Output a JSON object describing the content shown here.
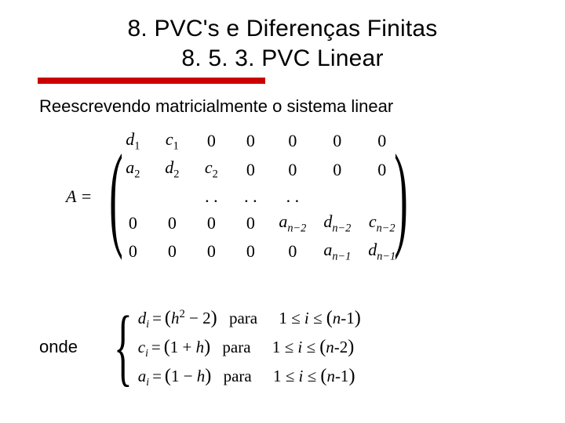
{
  "title_line1": "8. PVC's e Diferenças Finitas",
  "title_line2": "8. 5. 3. PVC  Linear",
  "body": "Reescrevendo matricialmente o sistema linear",
  "matrix": {
    "lhs": "A =",
    "rows": [
      [
        "d1",
        "c1",
        "0",
        "0",
        "0",
        "0",
        "0"
      ],
      [
        "a2",
        "d2",
        "c2",
        "0",
        "0",
        "0",
        "0"
      ],
      [
        "",
        "",
        "..",
        "..",
        "..",
        "",
        ""
      ],
      [
        "0",
        "0",
        "0",
        "0",
        "a_{n-2}",
        "d_{n-2}",
        "c_{n-2}"
      ],
      [
        "0",
        "0",
        "0",
        "0",
        "0",
        "a_{n-1}",
        "d_{n-1}"
      ]
    ]
  },
  "onde_label": "onde",
  "defs": {
    "d": {
      "lhs": "d",
      "sub": "i",
      "rhs": "(h² − 2)",
      "para": "para",
      "range": "1 ≤ i ≤ (n-1)"
    },
    "c": {
      "lhs": "c",
      "sub": "i",
      "rhs": "(1 + h)",
      "para": "para",
      "range": "1 ≤ i ≤ (n-2)"
    },
    "a": {
      "lhs": "a",
      "sub": "i",
      "rhs": "(1 − h)",
      "para": "para",
      "range": "1 ≤ i ≤ (n-1)"
    }
  },
  "colors": {
    "underline": "#cc0000",
    "text": "#000000",
    "background": "#ffffff"
  }
}
